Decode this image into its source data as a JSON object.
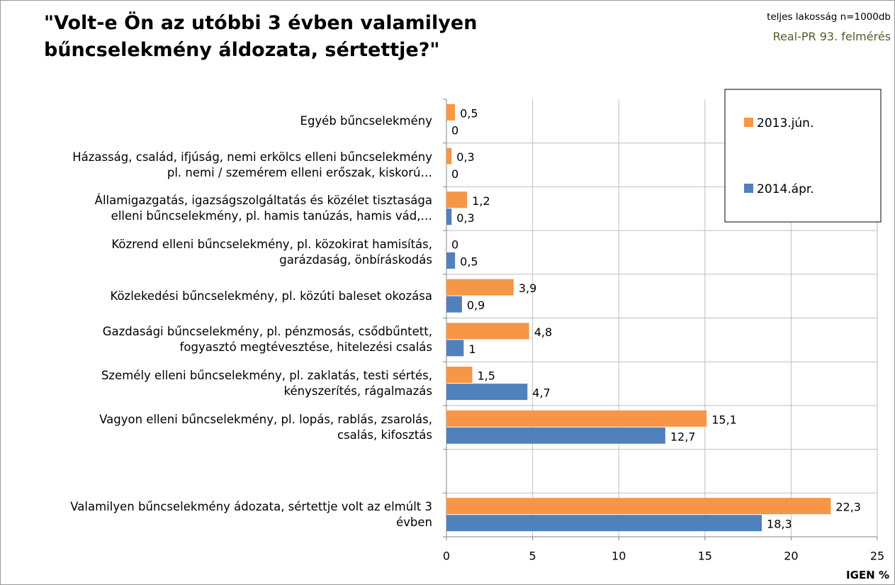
{
  "chart_data": {
    "type": "bar",
    "title": "\"Volt-e Ön az utóbbi 3 évben valamilyen\nbűncselekmény áldozata, sértettje?\"",
    "subtitle": "teljes lakosság n=1000db",
    "annotations": [
      "Real-PR 93. felmérés"
    ],
    "x_label": "IGEN %",
    "categories": [
      "Egyéb bűncselekmény",
      "Házasság, család, ifjúság, nemi erkölcs elleni bűncselekmény\npl. nemi / szemérem elleni erőszak, kiskorú…",
      "Államigazgatás, igazságszolgáltatás és közélet tisztasága\nelleni bűncselekmény, pl. hamis tanúzás, hamis vád,…",
      "Közrend elleni bűncselekmény, pl. közokirat hamisítás,\ngarázdaság, önbíráskodás",
      "Közlekedési bűncselekmény, pl. közúti baleset okozása",
      "Gazdasági bűncselekmény, pl. pénzmosás, csődbűntett,\nfogyasztó megtévesztése, hitelezési csalás",
      "Személy elleni bűncselekmény, pl. zaklatás, testi sértés,\nkényszerítés, rágalmazás",
      "Vagyon elleni bűncselekmény, pl. lopás, rablás, zsarolás,\ncsalás, kifosztás",
      null,
      "Valamilyen bűncselekmény ádozata, sértettje volt az elmúlt 3\névben"
    ],
    "series": [
      {
        "name": "2013.jún.",
        "color": "#f79646",
        "values": [
          0.5,
          0.3,
          1.2,
          0,
          3.9,
          4.8,
          1.5,
          15.1,
          null,
          22.3
        ],
        "value_labels": [
          "0,5",
          "0,3",
          "1,2",
          "0",
          "3,9",
          "4,8",
          "1,5",
          "15,1",
          null,
          "22,3"
        ]
      },
      {
        "name": "2014.ápr.",
        "color": "#4f81bd",
        "values": [
          0,
          0,
          0.3,
          0.5,
          0.9,
          1,
          4.7,
          12.7,
          null,
          18.3
        ],
        "value_labels": [
          "0",
          "0",
          "0,3",
          "0,5",
          "0,9",
          "1",
          "4,7",
          "12,7",
          null,
          "18,3"
        ]
      }
    ],
    "xlim": [
      0,
      25
    ],
    "xticks": [
      0,
      5,
      10,
      15,
      20,
      25
    ],
    "grid": true,
    "legend": "top-right"
  }
}
